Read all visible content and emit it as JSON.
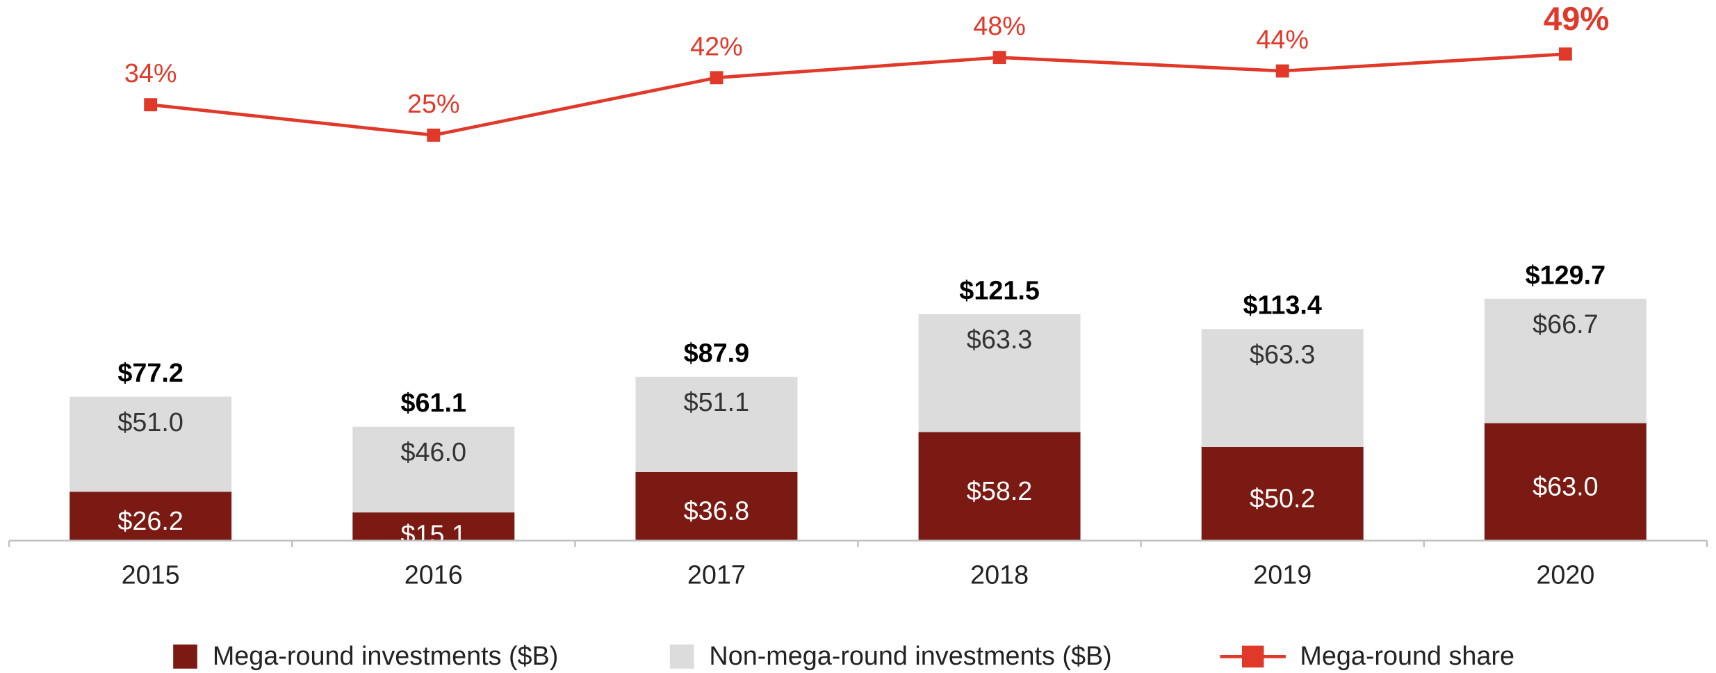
{
  "chart_data": {
    "type": "bar",
    "stacked": true,
    "categories": [
      "2015",
      "2016",
      "2017",
      "2018",
      "2019",
      "2020"
    ],
    "series": [
      {
        "name": "Mega-round investments ($B)",
        "color": "#7a1a12",
        "values": [
          26.2,
          15.1,
          36.8,
          58.2,
          50.2,
          63.0
        ],
        "value_labels": [
          "$26.2",
          "$15.1",
          "$36.8",
          "$58.2",
          "$50.2",
          "$63.0"
        ]
      },
      {
        "name": "Non-mega-round investments ($B)",
        "color": "#dcdcdc",
        "values": [
          51.0,
          46.0,
          51.1,
          63.3,
          63.3,
          66.7
        ],
        "value_labels": [
          "$51.0",
          "$46.0",
          "$51.1",
          "$63.3",
          "$63.3",
          "$66.7"
        ]
      },
      {
        "name": "Mega-round share",
        "type": "line",
        "axis": "y2",
        "color": "#e0392a",
        "values": [
          34,
          25,
          42,
          48,
          44,
          49
        ],
        "value_labels": [
          "34%",
          "25%",
          "42%",
          "48%",
          "44%",
          "49%"
        ]
      }
    ],
    "total_labels": [
      "$77.2",
      "$61.1",
      "$87.9",
      "$121.5",
      "$113.4",
      "$129.7"
    ],
    "ylim": [
      0,
      290
    ],
    "y2lim": [
      -95,
      65
    ],
    "legend": "bottom"
  }
}
